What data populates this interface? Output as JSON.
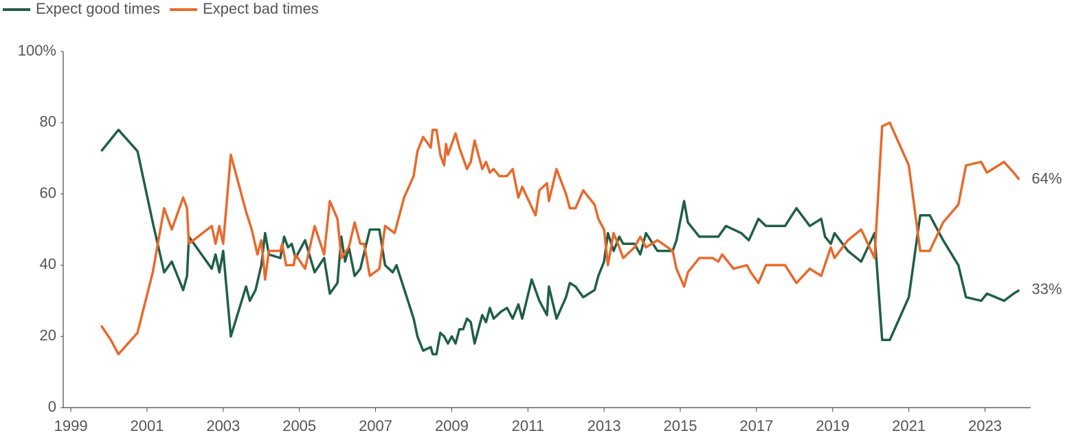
{
  "chart_data": {
    "type": "line",
    "xlim": [
      1998.8,
      2024.2
    ],
    "xticks": [
      1999,
      2001,
      2003,
      2005,
      2007,
      2009,
      2011,
      2013,
      2015,
      2017,
      2019,
      2021,
      2023
    ],
    "ylim": [
      0,
      100
    ],
    "yticks": [
      0,
      20,
      40,
      60,
      80,
      {
        "value": 100,
        "label": "100%"
      }
    ],
    "grid": false,
    "legend": "top-left",
    "series": [
      {
        "name": "Expect good times",
        "color": "#1f5f45",
        "end_label": "33%",
        "x": [
          1999.8,
          2000.1,
          2000.25,
          2000.75,
          2001.15,
          2001.45,
          2001.65,
          2001.95,
          2002.05,
          2002.1,
          2002.7,
          2002.8,
          2002.9,
          2003.0,
          2003.2,
          2003.6,
          2003.7,
          2003.85,
          2004.0,
          2004.1,
          2004.2,
          2004.5,
          2004.6,
          2004.7,
          2004.8,
          2004.9,
          2005.15,
          2005.4,
          2005.65,
          2005.8,
          2006.0,
          2006.1,
          2006.2,
          2006.3,
          2006.45,
          2006.6,
          2006.85,
          2007.1,
          2007.25,
          2007.45,
          2007.55,
          2008.0,
          2008.1,
          2008.25,
          2008.45,
          2008.5,
          2008.6,
          2008.7,
          2008.8,
          2008.9,
          2009.0,
          2009.1,
          2009.2,
          2009.3,
          2009.4,
          2009.5,
          2009.6,
          2009.8,
          2009.9,
          2010.0,
          2010.1,
          2010.3,
          2010.45,
          2010.6,
          2010.75,
          2010.85,
          2011.1,
          2011.3,
          2011.5,
          2011.55,
          2011.75,
          2012.0,
          2012.1,
          2012.25,
          2012.45,
          2012.75,
          2012.85,
          2013.0,
          2013.1,
          2013.25,
          2013.4,
          2013.5,
          2013.8,
          2013.95,
          2014.1,
          2014.4,
          2014.8,
          2014.9,
          2015.1,
          2015.2,
          2015.5,
          2016.0,
          2016.2,
          2016.6,
          2016.8,
          2017.05,
          2017.25,
          2017.75,
          2018.05,
          2018.4,
          2018.7,
          2018.8,
          2018.95,
          2019.05,
          2019.4,
          2019.75,
          2020.1,
          2020.3,
          2020.5,
          2021.0,
          2021.3,
          2021.55,
          2021.9,
          2022.3,
          2022.5,
          2022.9,
          2023.05,
          2023.5,
          2023.75,
          2023.9
        ],
        "values": [
          72,
          76,
          78,
          72,
          52,
          38,
          41,
          33,
          37,
          48,
          39,
          43,
          38,
          44,
          20,
          34,
          30,
          33,
          40,
          49,
          43,
          42,
          48,
          45,
          46,
          42,
          47,
          38,
          42,
          32,
          35,
          48,
          41,
          45,
          37,
          39,
          50,
          50,
          40,
          38,
          40,
          25,
          20,
          16,
          17,
          15,
          15,
          21,
          20,
          18,
          20,
          18,
          22,
          22,
          25,
          24,
          18,
          26,
          24,
          28,
          25,
          27,
          28,
          25,
          29,
          25,
          36,
          30,
          26,
          34,
          25,
          31,
          35,
          34,
          31,
          33,
          37,
          41,
          49,
          44,
          48,
          46,
          46,
          43,
          49,
          44,
          44,
          47,
          58,
          52,
          48,
          48,
          51,
          49,
          47,
          53,
          51,
          51,
          56,
          51,
          53,
          48,
          46,
          49,
          44,
          41,
          49,
          19,
          19,
          31,
          54,
          54,
          47,
          40,
          31,
          30,
          32,
          30,
          32,
          33
        ]
      },
      {
        "name": "Expect bad times",
        "color": "#e8692b",
        "end_label": "64%",
        "x": [
          1999.8,
          2000.05,
          2000.25,
          2000.75,
          2001.15,
          2001.45,
          2001.65,
          2001.95,
          2002.05,
          2002.1,
          2002.7,
          2002.8,
          2002.9,
          2003.0,
          2003.2,
          2003.6,
          2003.75,
          2003.9,
          2004.0,
          2004.1,
          2004.2,
          2004.5,
          2004.55,
          2004.65,
          2004.85,
          2004.9,
          2005.15,
          2005.4,
          2005.65,
          2005.8,
          2006.0,
          2006.1,
          2006.3,
          2006.45,
          2006.6,
          2006.7,
          2006.85,
          2007.1,
          2007.25,
          2007.5,
          2007.75,
          2008.0,
          2008.1,
          2008.25,
          2008.45,
          2008.5,
          2008.6,
          2008.7,
          2008.8,
          2008.85,
          2008.9,
          2009.1,
          2009.2,
          2009.4,
          2009.5,
          2009.6,
          2009.8,
          2009.9,
          2010.0,
          2010.1,
          2010.25,
          2010.45,
          2010.6,
          2010.75,
          2010.85,
          2011.2,
          2011.3,
          2011.5,
          2011.55,
          2011.75,
          2012.0,
          2012.1,
          2012.25,
          2012.45,
          2012.75,
          2012.85,
          2013.0,
          2013.1,
          2013.25,
          2013.4,
          2013.5,
          2013.8,
          2013.95,
          2014.1,
          2014.4,
          2014.8,
          2014.9,
          2015.1,
          2015.2,
          2015.5,
          2015.85,
          2016.0,
          2016.1,
          2016.4,
          2016.75,
          2016.85,
          2017.05,
          2017.25,
          2017.75,
          2018.05,
          2018.4,
          2018.7,
          2018.95,
          2019.05,
          2019.4,
          2019.75,
          2020.1,
          2020.3,
          2020.5,
          2021.0,
          2021.3,
          2021.55,
          2021.9,
          2022.3,
          2022.5,
          2022.9,
          2023.05,
          2023.5,
          2023.75,
          2023.9
        ],
        "values": [
          23,
          19,
          15,
          21,
          38,
          56,
          50,
          59,
          56,
          46,
          51,
          46,
          51,
          46,
          71,
          55,
          50,
          43,
          47,
          36,
          44,
          44,
          46,
          40,
          40,
          43,
          39,
          51,
          43,
          58,
          53,
          42,
          45,
          52,
          46,
          46,
          37,
          39,
          51,
          49,
          59,
          65,
          72,
          76,
          73,
          78,
          78,
          71,
          68,
          74,
          71,
          77,
          73,
          67,
          69,
          75,
          67,
          69,
          66,
          67,
          65,
          65,
          67,
          59,
          62,
          54,
          61,
          63,
          58,
          67,
          60,
          56,
          56,
          61,
          57,
          53,
          50,
          40,
          49,
          45,
          42,
          45,
          48,
          45,
          47,
          44,
          39,
          34,
          38,
          42,
          42,
          41,
          43,
          39,
          40,
          38,
          35,
          40,
          40,
          35,
          39,
          37,
          45,
          42,
          47,
          50,
          42,
          79,
          80,
          68,
          44,
          44,
          52,
          57,
          68,
          69,
          66,
          69,
          66,
          64
        ]
      }
    ]
  }
}
